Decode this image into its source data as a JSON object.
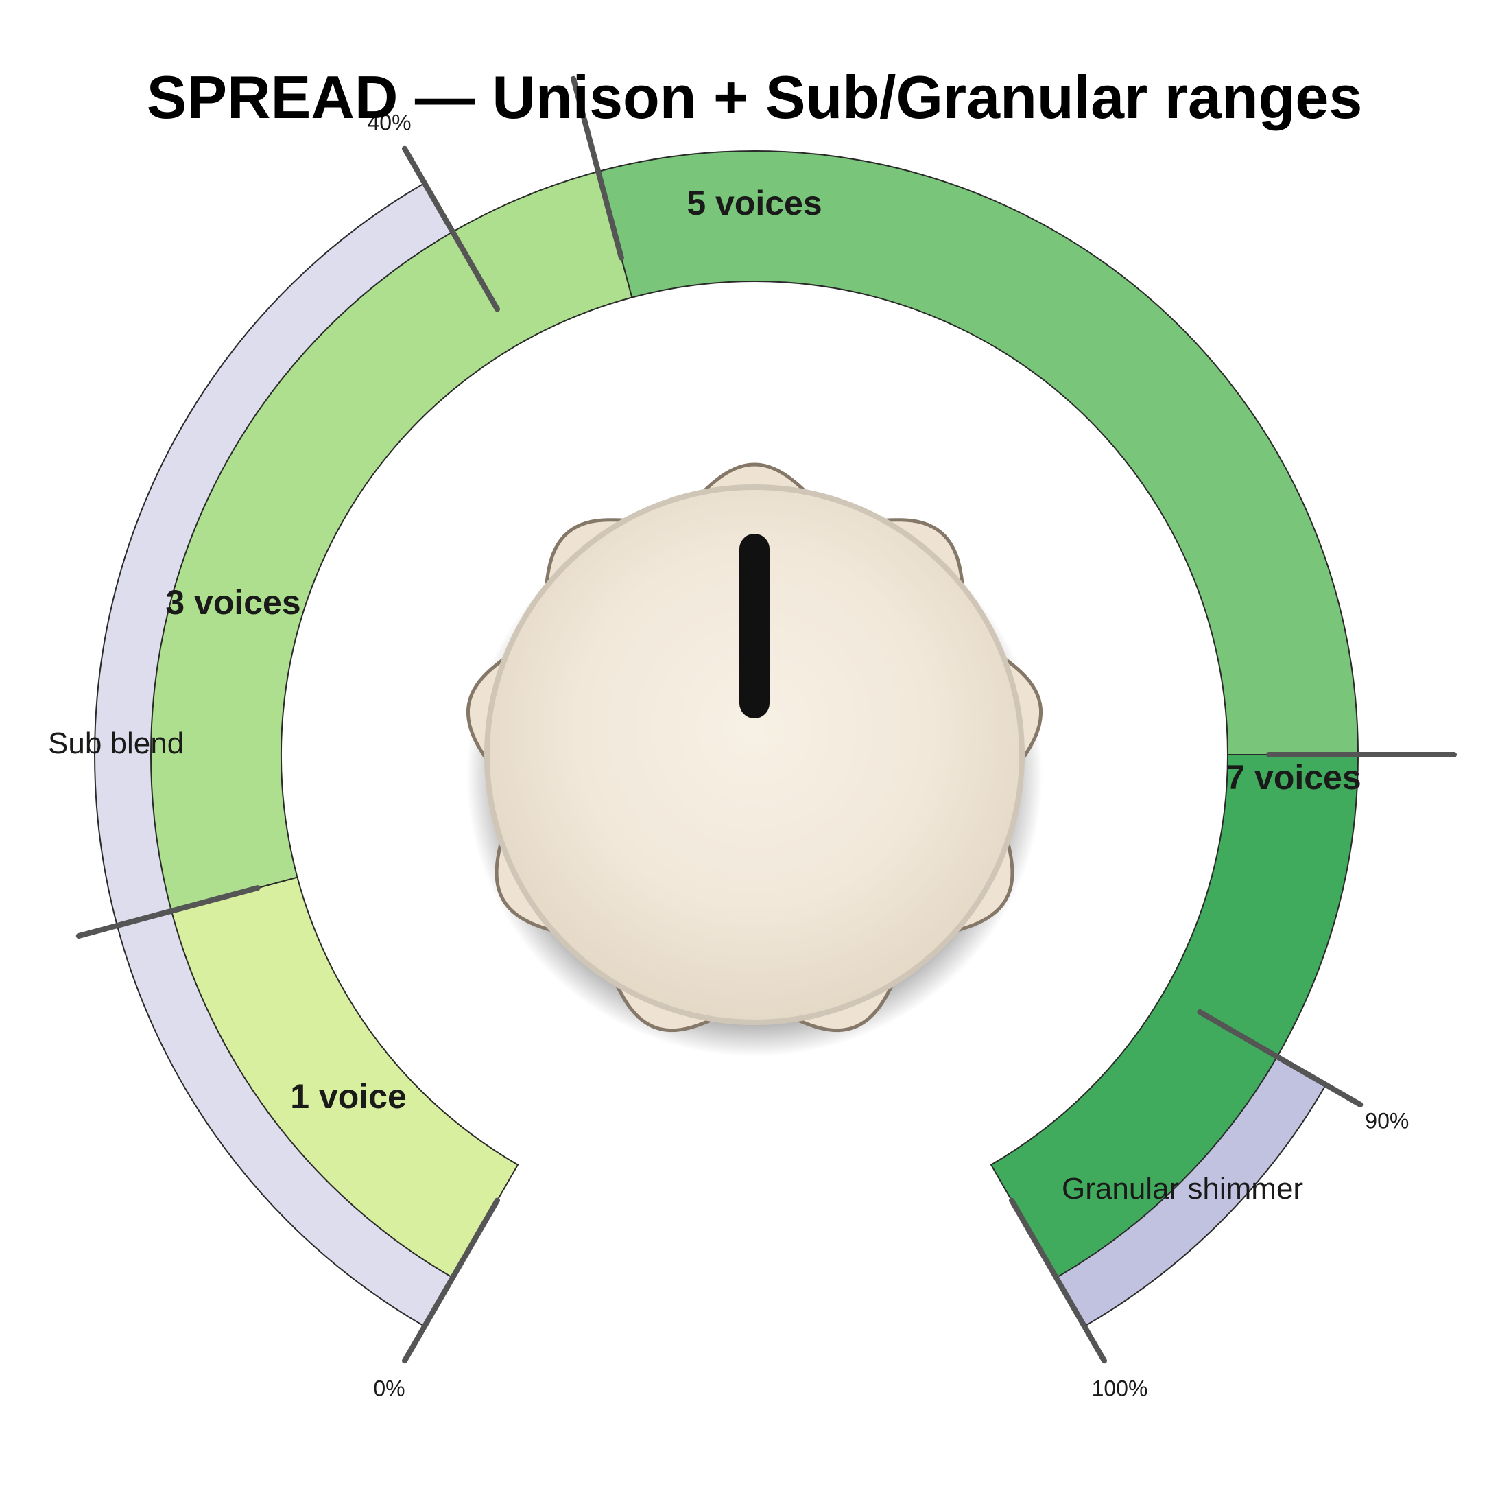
{
  "title": "SPREAD — Unison + Sub/Granular ranges",
  "knob": {
    "value_percent": 50
  },
  "outer_bands": [
    {
      "label": "Sub blend",
      "start": 0,
      "end": 40,
      "color": "#dedded"
    },
    {
      "label": "Granular shimmer",
      "start": 90,
      "end": 100,
      "color": "#c0c2df"
    }
  ],
  "zones": [
    {
      "label": "1 voice",
      "start": 0,
      "end": 15,
      "color": "#d8ef9f"
    },
    {
      "label": "3 voices",
      "start": 15,
      "end": 45,
      "color": "#addf8e"
    },
    {
      "label": "5 voices",
      "start": 45,
      "end": 80,
      "color": "#79c67a"
    },
    {
      "label": "7 voices",
      "start": 80,
      "end": 100,
      "color": "#41ab5d"
    }
  ],
  "tick_labels": [
    {
      "text": "0%",
      "value": 0
    },
    {
      "text": "40%",
      "value": 40
    },
    {
      "text": "90%",
      "value": 90
    },
    {
      "text": "100%",
      "value": 100
    }
  ],
  "tick_marks": [
    0,
    15,
    40,
    45,
    80,
    90,
    100
  ]
}
